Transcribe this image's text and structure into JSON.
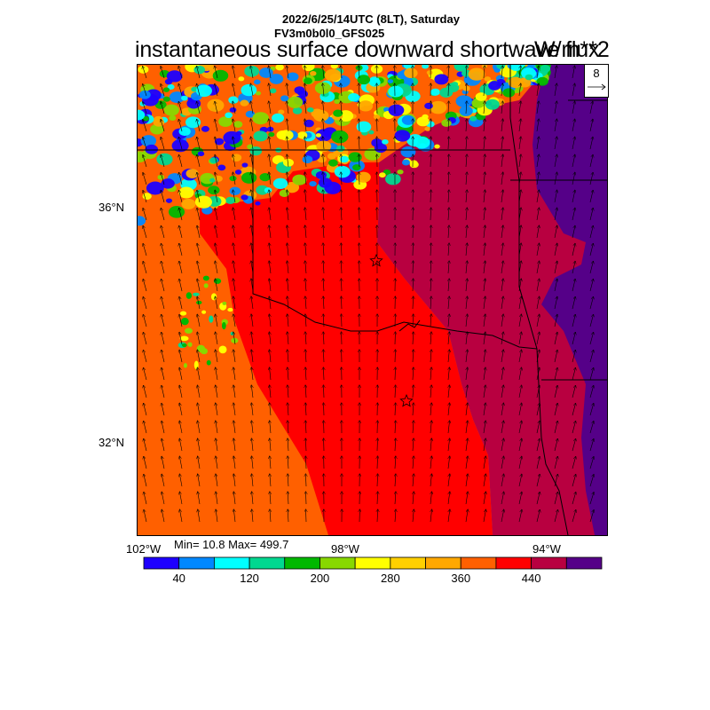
{
  "header": {
    "line1": "2022/6/25/14UTC (8LT), Saturday",
    "line2": "FV3m0b0l0_GFS025"
  },
  "title": "instantaneous surface downward shortwave flux",
  "units": "W/m**2",
  "reference_vector": {
    "value": "8"
  },
  "axes": {
    "lat_labels": [
      "36°N",
      "32°N"
    ],
    "lon_labels": [
      "102°W",
      "98°W",
      "94°W"
    ]
  },
  "stats": {
    "text": "Min= 10.8 Max= 499.7",
    "min": 10.8,
    "max": 499.7
  },
  "colorbar": {
    "colors": [
      "#1e00ff",
      "#0088ff",
      "#00ffff",
      "#00d890",
      "#00b800",
      "#88d800",
      "#ffff00",
      "#ffd000",
      "#ffa800",
      "#ff6000",
      "#ff0000",
      "#b80040",
      "#550088"
    ],
    "tick_labels": [
      "40",
      "120",
      "200",
      "280",
      "360",
      "440"
    ],
    "tick_values": [
      40,
      120,
      200,
      280,
      360,
      440
    ],
    "levels": [
      0,
      40,
      80,
      120,
      160,
      200,
      240,
      280,
      320,
      360,
      400,
      440,
      480,
      520
    ]
  },
  "map": {
    "region_colors": {
      "orange": "#ff6000",
      "red": "#ff0000",
      "maroon": "#b80040",
      "purple": "#550088",
      "cloud_blue": "#1e00ff"
    }
  }
}
